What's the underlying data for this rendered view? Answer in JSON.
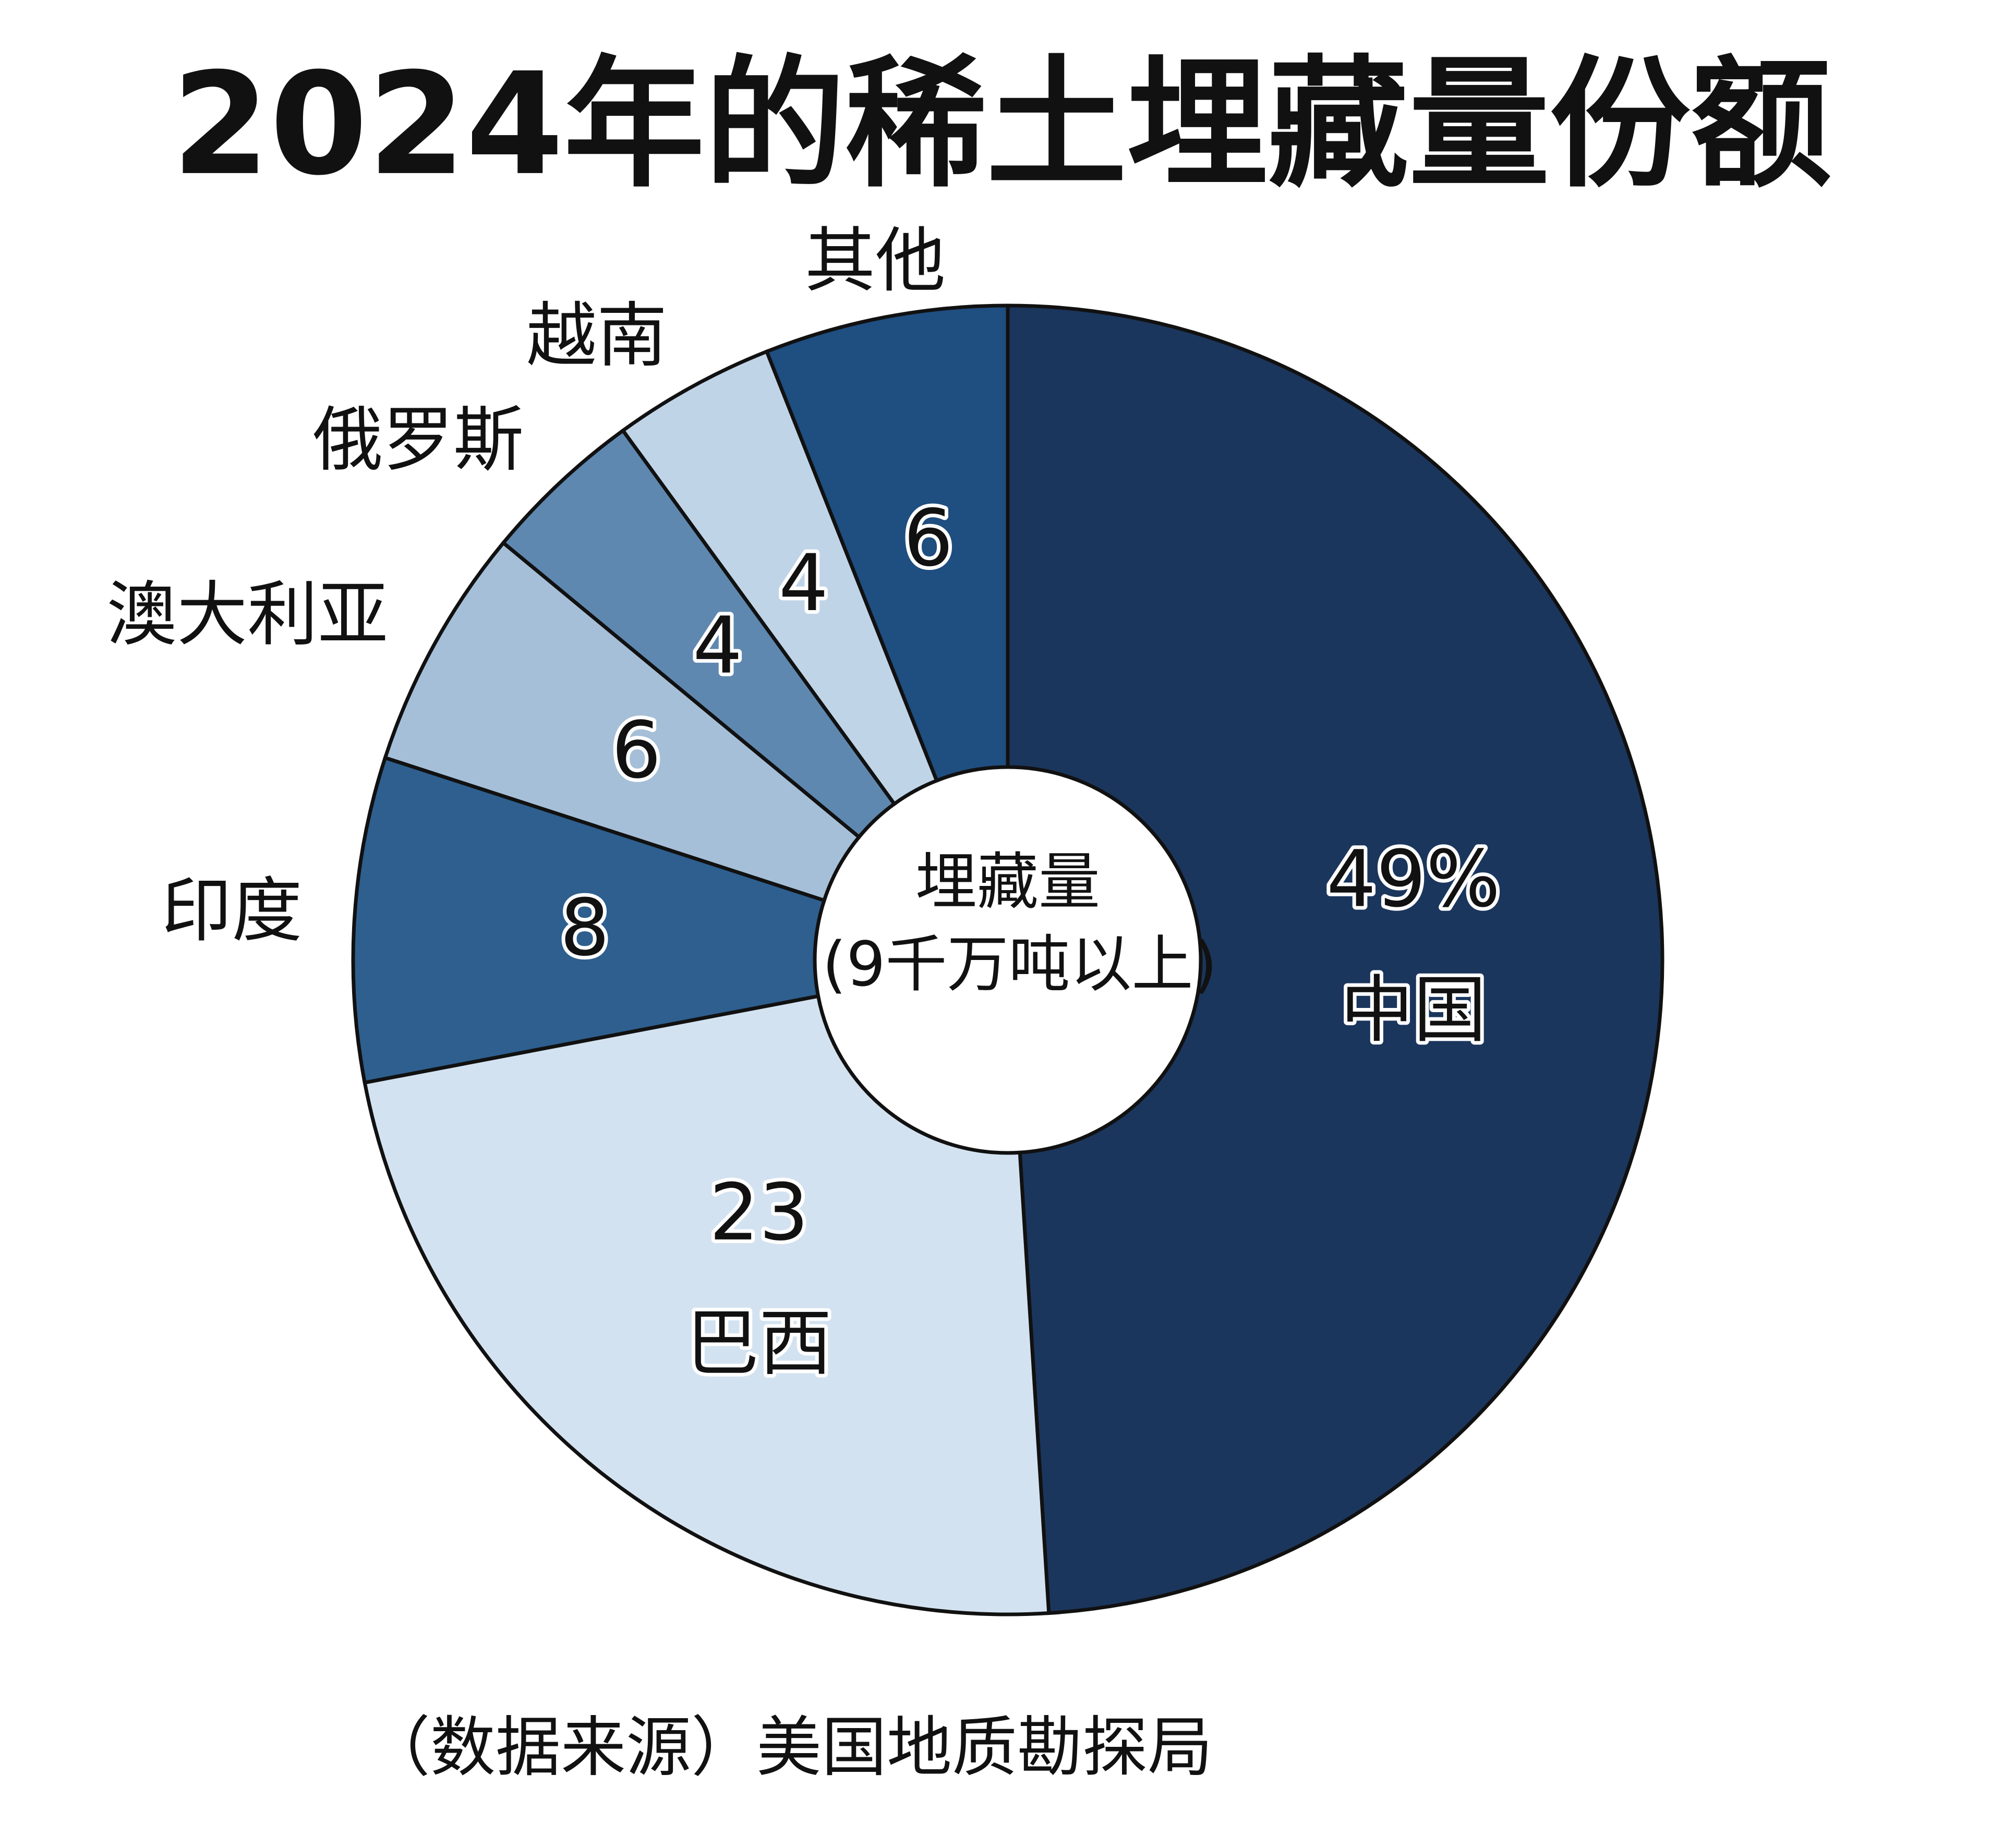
{
  "chart_data": {
    "type": "donut",
    "title": "2024年的稀土埋藏量份额",
    "center_text": [
      "埋藏量",
      "(9千万吨以上)"
    ],
    "source": "（数据来源）美国地质勘探局",
    "categories": [
      "中国",
      "巴西",
      "印度",
      "澳大利亚",
      "俄罗斯",
      "越南",
      "其他"
    ],
    "values": [
      49,
      23,
      8,
      6,
      4,
      4,
      6
    ],
    "value_labels": [
      "49%",
      "23",
      "8",
      "6",
      "4",
      "4",
      "6"
    ],
    "colors": [
      "#1b365d",
      "#d3e2f0",
      "#2e5f8f",
      "#a6bfd8",
      "#5f88b0",
      "#c0d4e8",
      "#1f4e80"
    ]
  }
}
